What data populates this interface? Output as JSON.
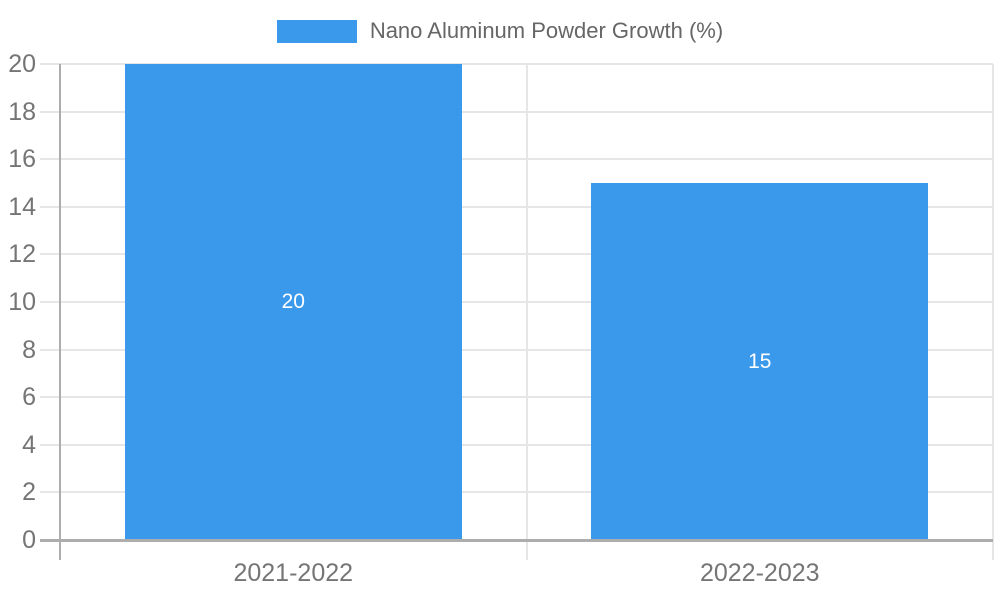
{
  "chart_data": {
    "type": "bar",
    "title": "",
    "legend": "Nano Aluminum Powder Growth (%)",
    "legend_position": "top-center",
    "categories": [
      "2021-2022",
      "2022-2023"
    ],
    "series": [
      {
        "name": "Nano Aluminum Powder Growth (%)",
        "values": [
          20,
          15
        ]
      }
    ],
    "bar_labels": [
      "20",
      "15"
    ],
    "xlabel": "",
    "ylabel": "",
    "ylim": [
      0,
      20
    ],
    "ytick_step": 2,
    "yticks": [
      0,
      2,
      4,
      6,
      8,
      10,
      12,
      14,
      16,
      18,
      20
    ],
    "grid": true,
    "colors": {
      "bar": "#3b99ec",
      "grid": "#e6e6e6",
      "axis": "#adadad",
      "tick_text": "#757575",
      "legend_text": "#666666",
      "bar_label_text": "#ffffff",
      "background": "#ffffff"
    }
  }
}
